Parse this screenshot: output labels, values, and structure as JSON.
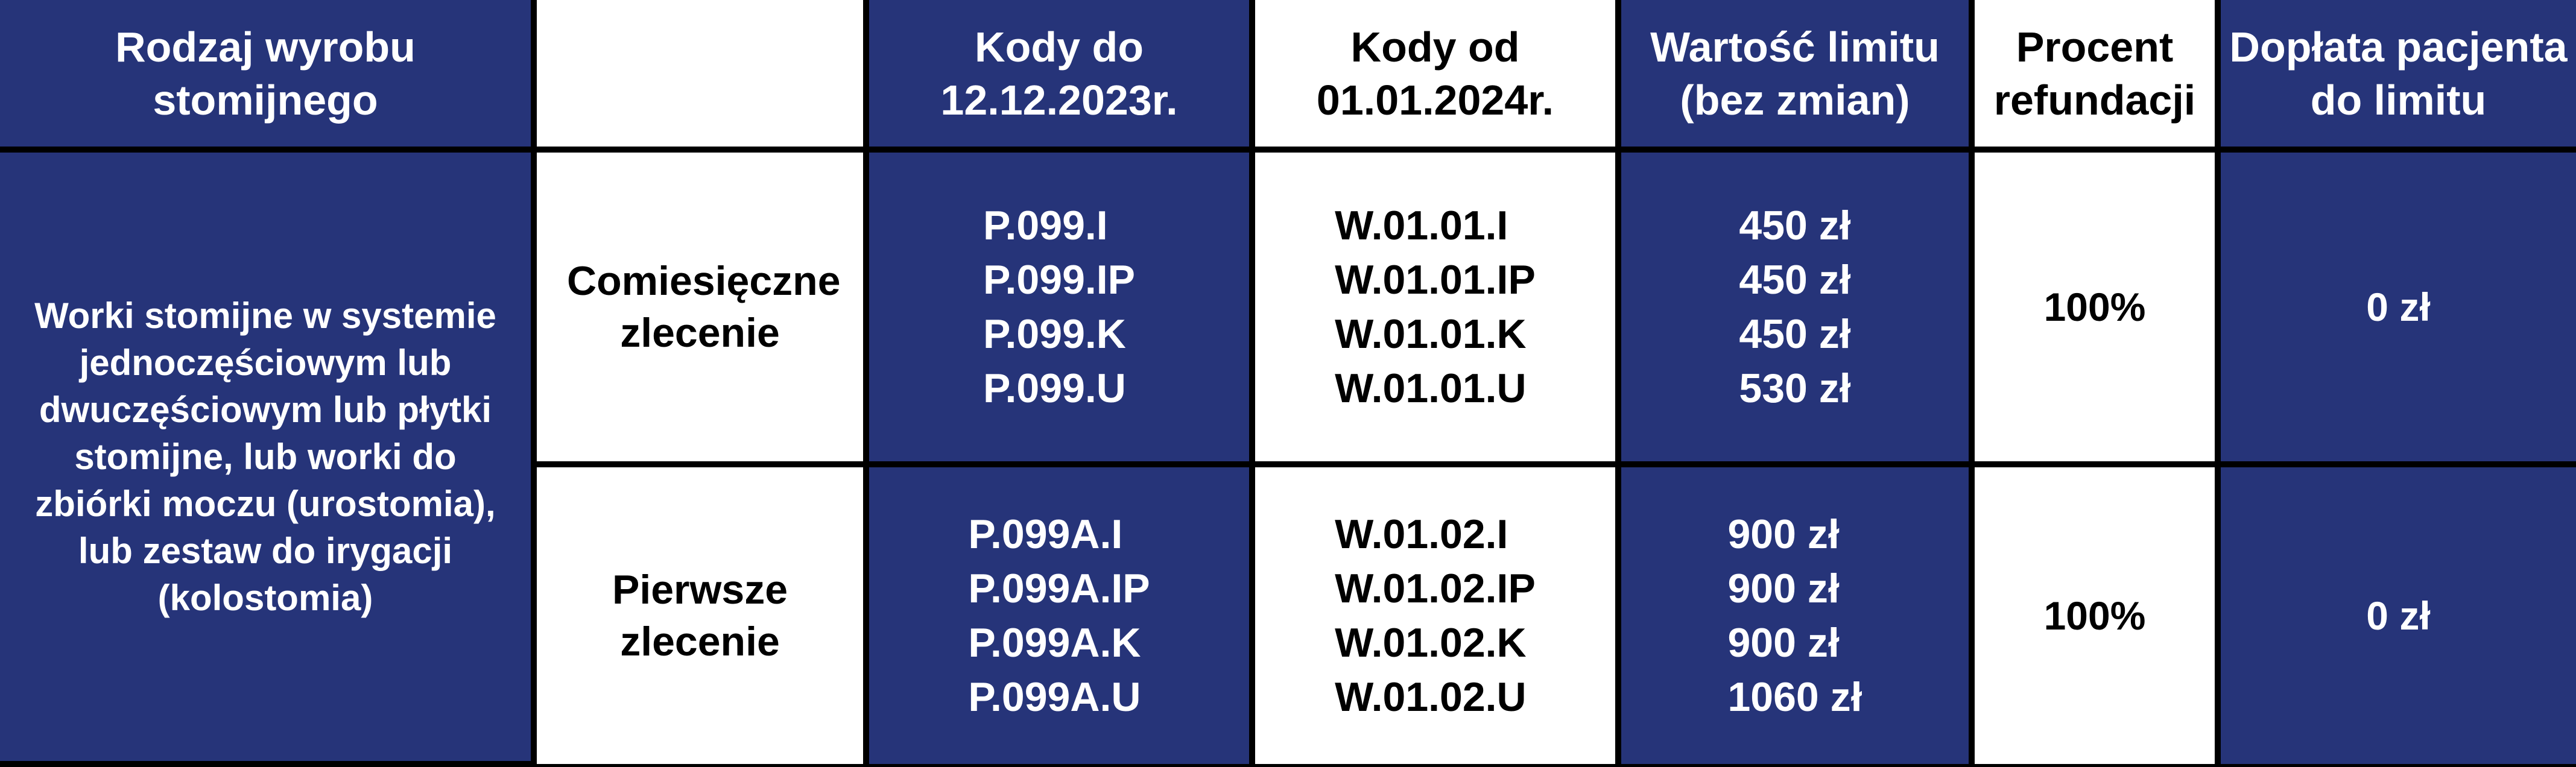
{
  "colors": {
    "blue": "#263479",
    "white": "#ffffff",
    "border": "#000000"
  },
  "headers": [
    "Rodzaj wyrobu stomijnego",
    "",
    "Kody do 12.12.2023r.",
    "Kody od 01.01.2024r.",
    "Wartość limitu (bez zmian)",
    "Procent refundacji",
    "Dopłata pacjenta do limitu"
  ],
  "product_type": "Worki stomijne w systemie jednoczęściowym lub dwuczęściowym lub płytki stomijne, lub worki do zbiórki moczu (urostomia), lub zestaw do irygacji (kolostomia)",
  "rows": [
    {
      "order": "Comiesięczne zlecenie",
      "old_codes": [
        "P.099.I",
        "P.099.IP",
        "P.099.K",
        "P.099.U"
      ],
      "new_codes": [
        "W.01.01.I",
        "W.01.01.IP",
        "W.01.01.K",
        "W.01.01.U"
      ],
      "limits": [
        "450 zł",
        "450 zł",
        "450 zł",
        "530 zł"
      ],
      "refund": "100%",
      "copay": "0 zł"
    },
    {
      "order": "Pierwsze zlecenie",
      "old_codes": [
        "P.099A.I",
        "P.099A.IP",
        "P.099A.K",
        "P.099A.U"
      ],
      "new_codes": [
        "W.01.02.I",
        "W.01.02.IP",
        "W.01.02.K",
        "W.01.02.U"
      ],
      "limits": [
        "900 zł",
        "900 zł",
        "900 zł",
        "1060 zł"
      ],
      "refund": "100%",
      "copay": "0 zł"
    }
  ]
}
